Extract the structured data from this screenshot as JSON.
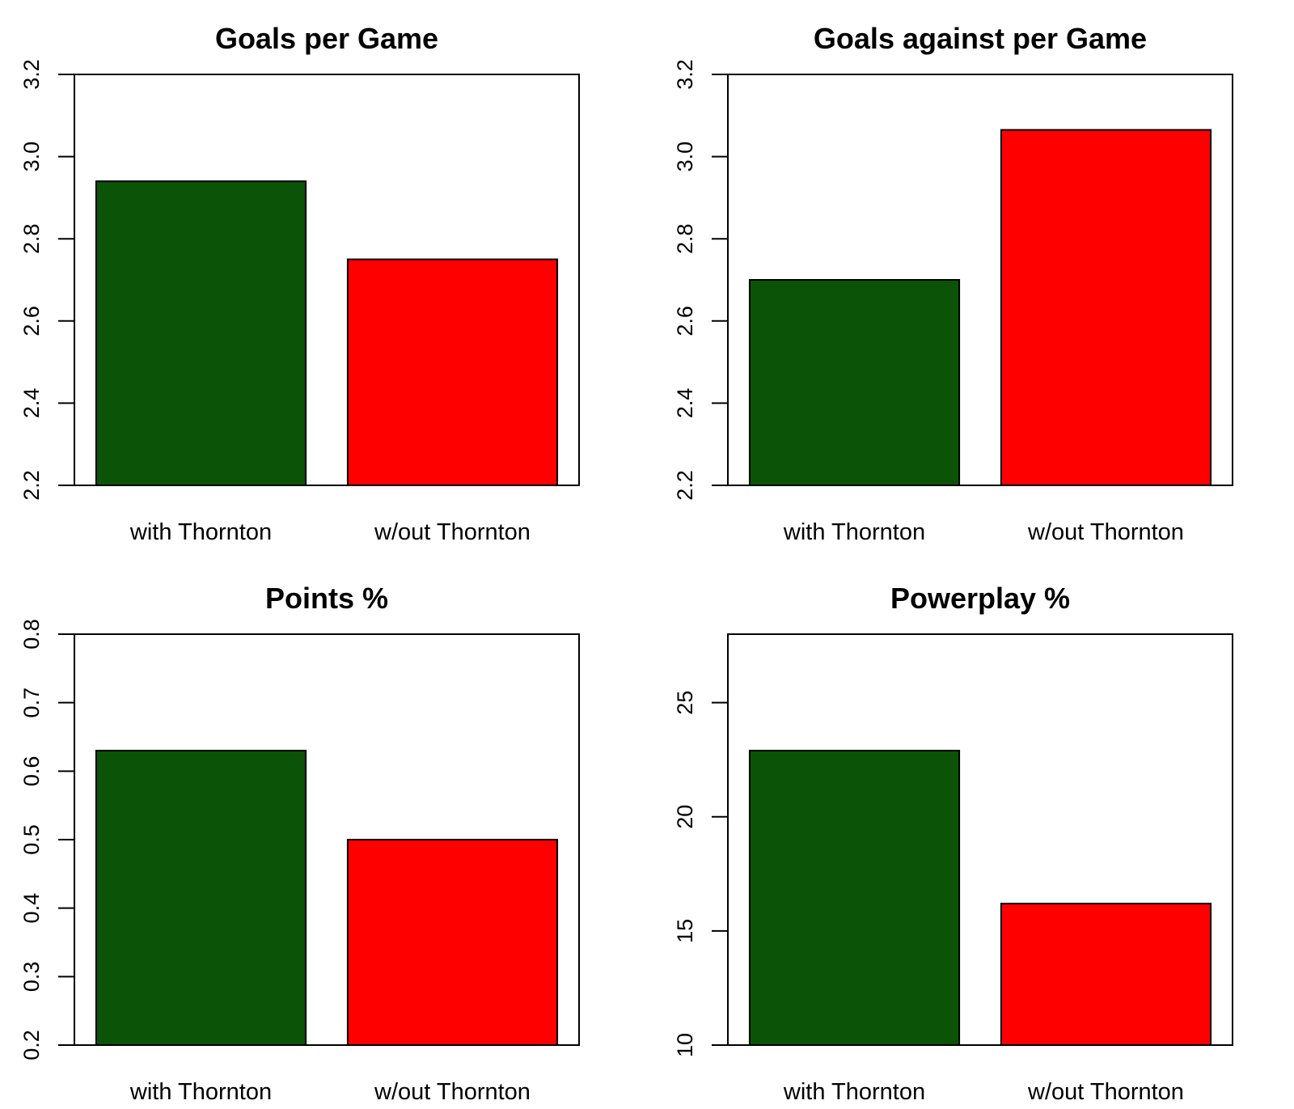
{
  "chart_data": [
    {
      "type": "bar",
      "title": "Goals per Game",
      "categories": [
        "with Thornton",
        "w/out Thornton"
      ],
      "values": [
        2.94,
        2.75
      ],
      "colors": [
        "#0b5306",
        "#ff0000"
      ],
      "ylim": [
        2.2,
        3.2
      ],
      "yticks": [
        "2.2",
        "2.4",
        "2.6",
        "2.8",
        "3.0",
        "3.2"
      ],
      "xlabel": "",
      "ylabel": "",
      "grid": false
    },
    {
      "type": "bar",
      "title": "Goals against per Game",
      "categories": [
        "with Thornton",
        "w/out Thornton"
      ],
      "values": [
        2.7,
        3.065
      ],
      "colors": [
        "#0b5306",
        "#ff0000"
      ],
      "ylim": [
        2.2,
        3.2
      ],
      "yticks": [
        "2.2",
        "2.4",
        "2.6",
        "2.8",
        "3.0",
        "3.2"
      ],
      "xlabel": "",
      "ylabel": "",
      "grid": false
    },
    {
      "type": "bar",
      "title": "Points %",
      "categories": [
        "with Thornton",
        "w/out Thornton"
      ],
      "values": [
        0.63,
        0.5
      ],
      "colors": [
        "#0b5306",
        "#ff0000"
      ],
      "ylim": [
        0.2,
        0.8
      ],
      "yticks": [
        "0.2",
        "0.3",
        "0.4",
        "0.5",
        "0.6",
        "0.7",
        "0.8"
      ],
      "xlabel": "",
      "ylabel": "",
      "grid": false
    },
    {
      "type": "bar",
      "title": "Powerplay %",
      "categories": [
        "with Thornton",
        "w/out Thornton"
      ],
      "values": [
        22.9,
        16.2
      ],
      "colors": [
        "#0b5306",
        "#ff0000"
      ],
      "ylim": [
        10,
        28
      ],
      "yticks": [
        "10",
        "15",
        "20",
        "25"
      ],
      "xlabel": "",
      "ylabel": "",
      "grid": false
    }
  ]
}
